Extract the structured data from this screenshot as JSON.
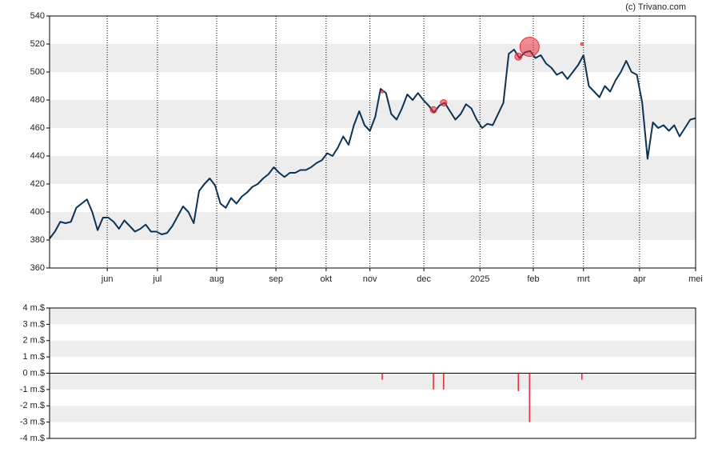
{
  "credit": "(c) Trivano.com",
  "chart_data": [
    {
      "type": "line",
      "values": [
        381,
        386,
        393,
        392,
        393,
        403,
        406,
        409,
        400,
        387,
        396,
        396,
        393,
        388,
        394,
        390,
        386,
        388,
        391,
        386,
        386,
        384,
        385,
        390,
        397,
        404,
        400,
        392,
        415,
        420,
        424,
        419,
        406,
        403,
        410,
        406,
        411,
        414,
        418,
        420,
        424,
        427,
        432,
        428,
        425,
        428,
        428,
        430,
        430,
        432,
        435,
        437,
        442,
        440,
        446,
        454,
        448,
        462,
        472,
        462,
        458,
        468,
        488,
        485,
        470,
        466,
        474,
        484,
        480,
        485,
        480,
        476,
        471,
        476,
        478,
        472,
        466,
        470,
        477,
        474,
        466,
        460,
        463,
        462,
        470,
        478,
        513,
        516,
        510,
        514,
        515,
        510,
        512,
        506,
        503,
        498,
        500,
        495,
        500,
        505,
        512,
        490,
        486,
        482,
        490,
        486,
        494,
        500,
        508,
        500,
        498,
        478,
        438,
        464,
        460,
        462,
        458,
        462,
        454,
        460,
        466,
        467
      ],
      "color": "#0d3354",
      "xlim": [
        0,
        121
      ],
      "xticks": [
        {
          "value": 10.8,
          "label": "jun"
        },
        {
          "value": 20.2,
          "label": "jul"
        },
        {
          "value": 31.3,
          "label": "aug"
        },
        {
          "value": 42.4,
          "label": "sep"
        },
        {
          "value": 51.8,
          "label": "okt"
        },
        {
          "value": 60.0,
          "label": "nov"
        },
        {
          "value": 70.1,
          "label": "dec"
        },
        {
          "value": 80.6,
          "label": "2025"
        },
        {
          "value": 90.6,
          "label": "feb"
        },
        {
          "value": 100.0,
          "label": "mrt"
        },
        {
          "value": 110.5,
          "label": "apr"
        },
        {
          "value": 121,
          "label": "mei"
        }
      ],
      "ylim": [
        360,
        540
      ],
      "yticks": [
        360,
        380,
        400,
        420,
        440,
        460,
        480,
        500,
        520,
        540
      ],
      "trades": {
        "x": [
          62.3,
          71.9,
          73.8,
          87.8,
          89.9,
          99.7
        ],
        "y": [
          486,
          473,
          478,
          511,
          518,
          520
        ],
        "color": "#e8303a"
      }
    },
    {
      "type": "bar",
      "x": [
        62.3,
        71.9,
        73.8,
        87.8,
        89.9,
        99.7
      ],
      "values": [
        -0.4,
        -1,
        -1,
        -1.1,
        -3,
        -0.4
      ],
      "color": "#e8303a",
      "xlim": [
        0,
        121
      ],
      "ylim": [
        -4,
        4
      ],
      "yticks": [
        {
          "value": 4,
          "label": "4 m.$"
        },
        {
          "value": 3,
          "label": "3 m.$"
        },
        {
          "value": 2,
          "label": "2 m.$"
        },
        {
          "value": 1,
          "label": "1 m.$"
        },
        {
          "value": 0,
          "label": "0 m.$"
        },
        {
          "value": -1,
          "label": "-1 m.$"
        },
        {
          "value": -2,
          "label": "-2 m.$"
        },
        {
          "value": -3,
          "label": "-3 m.$"
        },
        {
          "value": -4,
          "label": "-4 m.$"
        }
      ]
    }
  ]
}
